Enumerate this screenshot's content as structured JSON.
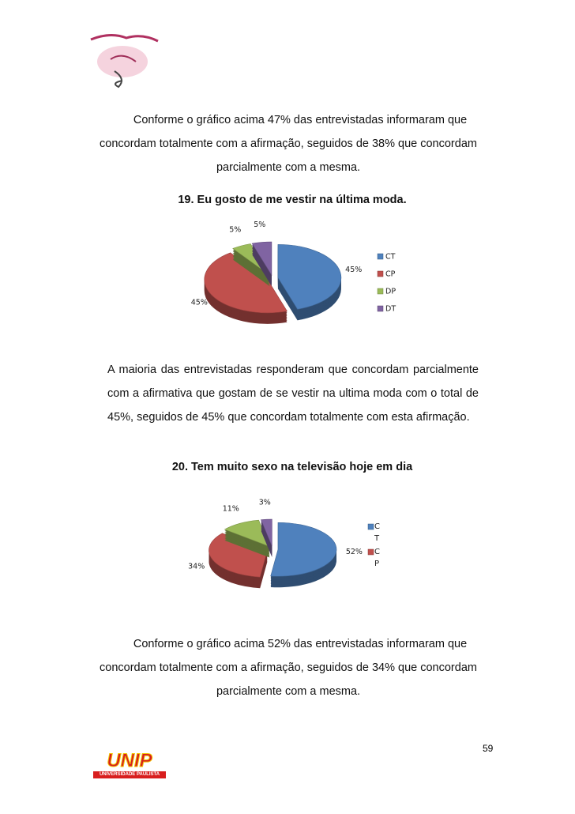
{
  "paragraphs": [
    "Conforme o gráfico acima 47% das entrevistadas informaram que concordam totalmente com a afirmação, seguidos de 38% que concordam parcialmente com a mesma.",
    "A maioria das entrevistadas responderam que concordam parcialmente com a afirmativa que gostam de se vestir na ultima moda com o total de 45%, seguidos de 45% que concordam totalmente com esta afirmação.",
    "Conforme o gráfico acima 52% das entrevistadas informaram que concordam totalmente com a afirmação, seguidos de 34% que concordam parcialmente com a mesma."
  ],
  "chart_data": [
    {
      "type": "pie",
      "title": "19. Eu gosto de me vestir na última moda.",
      "categories": [
        "CT",
        "CP",
        "DP",
        "DT"
      ],
      "values": [
        45,
        45,
        5,
        5
      ],
      "value_labels": [
        "45%",
        "45%",
        "5%",
        "5%"
      ],
      "colors": [
        "#4f81bd",
        "#c0504d",
        "#9bbb59",
        "#8064a2"
      ],
      "legend": "right"
    },
    {
      "type": "pie",
      "title": "20. Tem muito sexo na televisão hoje em dia",
      "categories": [
        "CT",
        "CP",
        null,
        null
      ],
      "values": [
        52,
        34,
        11,
        3
      ],
      "value_labels": [
        "52%",
        "34%",
        "11%",
        "3%"
      ],
      "colors": [
        "#4f81bd",
        "#c0504d",
        "#9bbb59",
        "#8064a2"
      ],
      "legend": "right"
    }
  ],
  "footer": {
    "page_number": "59",
    "logo_name": "UNIP",
    "logo_subtitle": "UNIVERSIDADE PAULISTA"
  }
}
